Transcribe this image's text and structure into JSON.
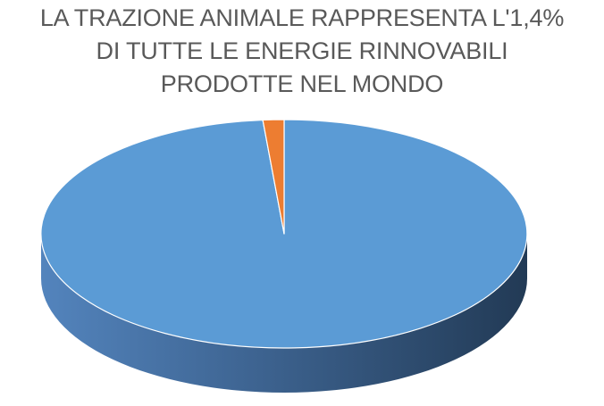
{
  "chart_data": {
    "type": "pie",
    "style": "3d",
    "title": "LA TRAZIONE ANIMALE RAPPRESENTA L'1,4% DI TUTTE LE ENERGIE RINNOVABILI PRODOTTE NEL MONDO",
    "values": [
      98.6,
      1.4
    ],
    "colors": [
      "#5b9bd5",
      "#ed7d31"
    ],
    "legend": "none",
    "data_labels": "none"
  }
}
